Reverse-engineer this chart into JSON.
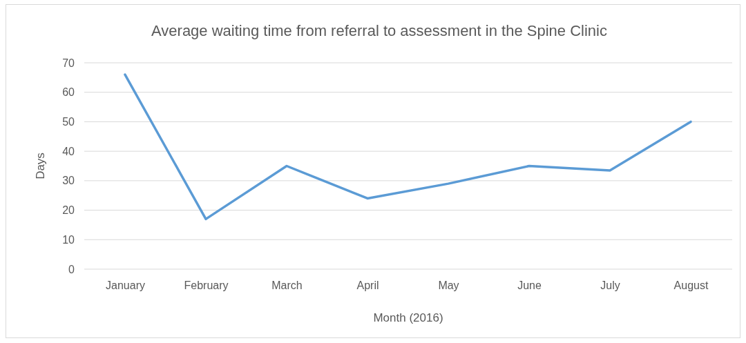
{
  "chart_data": {
    "type": "line",
    "title": "Average waiting time from referral to assessment in the Spine Clinic",
    "xlabel": "Month (2016)",
    "ylabel": "Days",
    "categories": [
      "January",
      "February",
      "March",
      "April",
      "May",
      "June",
      "July",
      "August"
    ],
    "series": [
      {
        "color": "#5b9bd5",
        "values": [
          66,
          17,
          35,
          24,
          29,
          35,
          33.5,
          50
        ]
      }
    ],
    "ylim": [
      0,
      70
    ],
    "yticks": [
      0,
      10,
      20,
      30,
      40,
      50,
      60,
      70
    ],
    "grid": "y",
    "marker": "none",
    "line_style": "solid"
  }
}
